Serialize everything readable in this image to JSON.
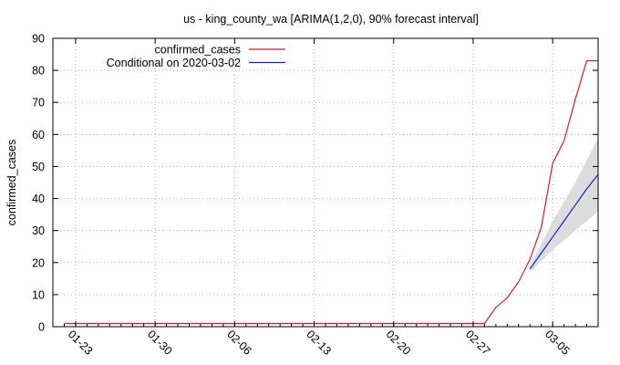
{
  "chart_data": {
    "type": "line",
    "title": "us - king_county_wa [ARIMA(1,2,0), 90% forecast interval]",
    "xlabel": "",
    "ylabel": "confirmed_cases",
    "xlim": [
      "2020-01-21",
      "2020-03-09"
    ],
    "ylim": [
      0,
      90
    ],
    "yticks": [
      0,
      10,
      20,
      30,
      40,
      50,
      60,
      70,
      80,
      90
    ],
    "xticks": [
      {
        "date": "2020-01-23",
        "label": "01-23"
      },
      {
        "date": "2020-01-30",
        "label": "01-30"
      },
      {
        "date": "2020-02-06",
        "label": "02-06"
      },
      {
        "date": "2020-02-13",
        "label": "02-13"
      },
      {
        "date": "2020-02-20",
        "label": "02-20"
      },
      {
        "date": "2020-02-27",
        "label": "02-27"
      },
      {
        "date": "2020-03-05",
        "label": "03-05"
      }
    ],
    "grid": true,
    "legend_position": "top-left",
    "series": [
      {
        "name": "confirmed_cases",
        "color": "#e41a1c",
        "points": [
          [
            "2020-01-22",
            1
          ],
          [
            "2020-02-28",
            1
          ],
          [
            "2020-02-29",
            6
          ],
          [
            "2020-03-01",
            9
          ],
          [
            "2020-03-02",
            14
          ],
          [
            "2020-03-03",
            21
          ],
          [
            "2020-03-04",
            31
          ],
          [
            "2020-03-05",
            51
          ],
          [
            "2020-03-06",
            58
          ],
          [
            "2020-03-07",
            71
          ],
          [
            "2020-03-08",
            83
          ],
          [
            "2020-03-09",
            83
          ]
        ]
      },
      {
        "name": "Conditional on 2020-03-02",
        "color": "#1f1fd8",
        "points": [
          [
            "2020-03-03",
            18
          ],
          [
            "2020-03-04",
            23
          ],
          [
            "2020-03-05",
            28
          ],
          [
            "2020-03-06",
            33
          ],
          [
            "2020-03-07",
            38
          ],
          [
            "2020-03-08",
            43
          ],
          [
            "2020-03-09",
            47.5
          ]
        ]
      }
    ],
    "interval": {
      "color": "#dcdcdc",
      "points": [
        [
          "2020-03-03",
          17,
          19
        ],
        [
          "2020-03-04",
          20.5,
          26
        ],
        [
          "2020-03-05",
          24,
          33
        ],
        [
          "2020-03-06",
          27,
          39
        ],
        [
          "2020-03-07",
          30,
          45
        ],
        [
          "2020-03-08",
          33,
          52
        ],
        [
          "2020-03-09",
          36,
          59
        ]
      ]
    }
  }
}
